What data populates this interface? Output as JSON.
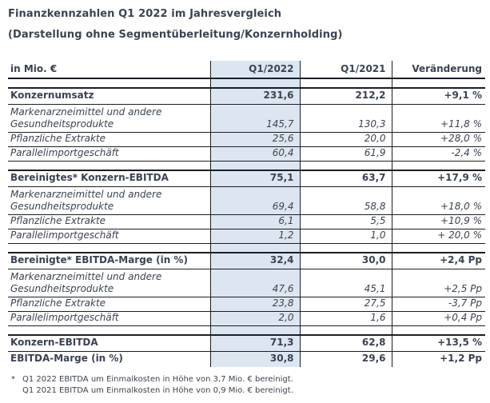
{
  "page": {
    "title": "Finanzkennzahlen Q1 2022 im Jahresvergleich",
    "subtitle": "(Darstellung ohne Segmentüberleitung/Konzernholding)"
  },
  "table": {
    "columns": [
      "in Mio. €",
      "Q1/2022",
      "Q1/2021",
      "Veränderung"
    ],
    "rows": [
      {
        "type": "spacer"
      },
      {
        "type": "section",
        "label": "Konzernumsatz",
        "q1_2022": "231,6",
        "q1_2021": "212,2",
        "change": "+9,1 %"
      },
      {
        "type": "sub",
        "twoline": true,
        "label": "Markenarzneimittel und andere Gesundheitsprodukte",
        "q1_2022": "145,7",
        "q1_2021": "130,3",
        "change": "+11,8 %"
      },
      {
        "type": "sub",
        "label": "Pflanzliche Extrakte",
        "q1_2022": "25,6",
        "q1_2021": "20,0",
        "change": "+28,0 %"
      },
      {
        "type": "sub",
        "label": "Parallelimportgeschäft",
        "q1_2022": "60,4",
        "q1_2021": "61,9",
        "change": "-2,4 %"
      },
      {
        "type": "spacer"
      },
      {
        "type": "section",
        "label": "Bereinigtes* Konzern-EBITDA",
        "q1_2022": "75,1",
        "q1_2021": "63,7",
        "change": "+17,9 %"
      },
      {
        "type": "sub",
        "twoline": true,
        "label": "Markenarzneimittel und andere Gesundheitsprodukte",
        "q1_2022": "69,4",
        "q1_2021": "58,8",
        "change": "+18,0 %"
      },
      {
        "type": "sub",
        "label": "Pflanzliche Extrakte",
        "q1_2022": "6,1",
        "q1_2021": "5,5",
        "change": "+10,9 %"
      },
      {
        "type": "sub",
        "label": "Parallelimportgeschäft",
        "q1_2022": "1,2",
        "q1_2021": "1,0",
        "change": "+ 20,0 %"
      },
      {
        "type": "spacer"
      },
      {
        "type": "section",
        "label": "Bereinigte* EBITDA-Marge (in %)",
        "q1_2022": "32,4",
        "q1_2021": "30,0",
        "change": "+2,4 Pp"
      },
      {
        "type": "sub",
        "twoline": true,
        "label": "Markenarzneimittel und andere Gesundheitsprodukte",
        "q1_2022": "47,6",
        "q1_2021": "45,1",
        "change": "+2,5 Pp"
      },
      {
        "type": "sub",
        "label": "Pflanzliche Extrakte",
        "q1_2022": "23,8",
        "q1_2021": "27,5",
        "change": "-3,7 Pp"
      },
      {
        "type": "sub",
        "label": "Parallelimportgeschäft",
        "q1_2022": "2,0",
        "q1_2021": "1,6",
        "change": "+0,4 Pp"
      },
      {
        "type": "spacer"
      },
      {
        "type": "section",
        "label": "Konzern-EBITDA",
        "q1_2022": "71,3",
        "q1_2021": "62,8",
        "change": "+13,5 %"
      },
      {
        "type": "section",
        "last": true,
        "label": "EBITDA-Marge (in %)",
        "q1_2022": "30,8",
        "q1_2021": "29,6",
        "change": "+1,2 Pp"
      }
    ]
  },
  "footnote": {
    "marker": "*",
    "lines": [
      "Q1 2022 EBITDA um Einmalkosten in Höhe von 3,7 Mio. € bereinigt.",
      "Q1 2021 EBITDA um Einmalkosten in Höhe von 0,9 Mio. € bereinigt."
    ]
  },
  "colors": {
    "highlight_column": "#dce6f1",
    "text": "#3a4352",
    "border": "#1b1e24"
  }
}
